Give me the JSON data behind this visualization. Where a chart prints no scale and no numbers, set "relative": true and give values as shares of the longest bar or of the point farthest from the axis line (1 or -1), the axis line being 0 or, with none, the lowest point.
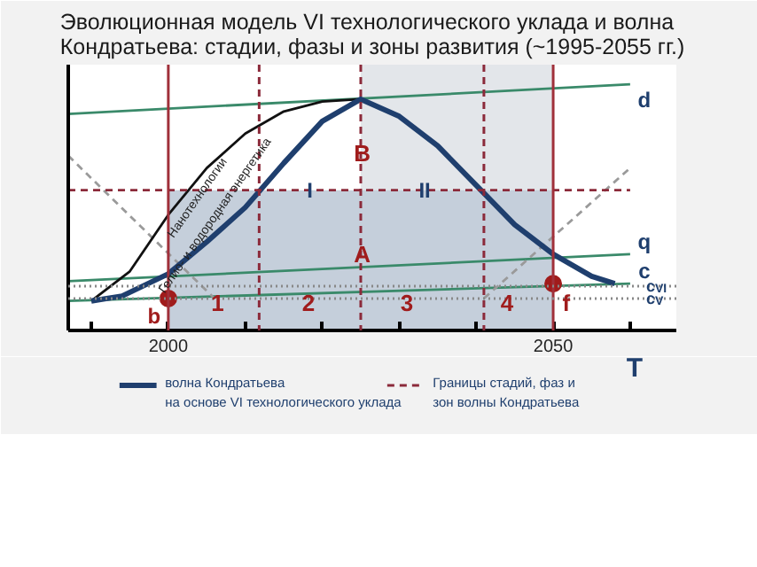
{
  "chart_data": {
    "type": "line",
    "relative": true,
    "title": "Эволюционная модель VI технологического уклада и волна\nКондратьева: стадии, фазы и зоны развития (~1995-2055 гг.)",
    "xlabel": "T",
    "xlim": [
      1987,
      2066
    ],
    "xticks": [
      {
        "value": 1990,
        "label": null
      },
      2000,
      {
        "value": 2010,
        "label": null
      },
      {
        "value": 2020,
        "label": null
      },
      {
        "value": 2030,
        "label": null
      },
      {
        "value": 2040,
        "label": null
      },
      2050,
      {
        "value": 2060,
        "label": null
      }
    ],
    "grid": false,
    "legend": "bottom",
    "tick_labels": "x",
    "series": [
      {
        "type": "area",
        "color": "#c5cfdb",
        "x": [
          2000,
          2050
        ],
        "values": [
          0.57,
          0.57
        ]
      },
      {
        "color": "#3a8a6a",
        "x": [
          1987,
          2060
        ],
        "values": [
          0.88,
          1.0
        ]
      },
      {
        "color": "#3a8a6a",
        "x": [
          1987,
          2060
        ],
        "values": [
          0.2,
          0.31
        ]
      },
      {
        "color": "#3a8a6a",
        "x": [
          1987,
          2060
        ],
        "values": [
          0.12,
          0.19
        ]
      },
      {
        "color": "#9a9a9a",
        "line_style": "dashed",
        "x": [
          1987,
          2006
        ],
        "values": [
          0.71,
          0.13
        ]
      },
      {
        "color": "#9a9a9a",
        "line_style": "dashed",
        "x": [
          2041,
          2060
        ],
        "values": [
          0.13,
          0.66
        ]
      },
      {
        "color": "#111111",
        "x": [
          1990,
          1995,
          2000,
          2005,
          2010,
          2015,
          2020,
          2025
        ],
        "values": [
          0.12,
          0.24,
          0.47,
          0.66,
          0.8,
          0.89,
          0.93,
          0.94
        ]
      },
      {
        "name": "волна Кондратьева\nна основе VI технологического уклада",
        "color": "#1f3f6e",
        "x": [
          1990,
          1994,
          2000,
          2005,
          2010,
          2015,
          2020,
          2025,
          2030,
          2035,
          2040,
          2045,
          2050,
          2055,
          2058
        ],
        "values": [
          0.12,
          0.14,
          0.23,
          0.36,
          0.5,
          0.68,
          0.85,
          0.94,
          0.87,
          0.75,
          0.59,
          0.43,
          0.31,
          0.22,
          0.19
        ]
      },
      {
        "name": "Границы стадий, фаз и\nзон волны Кондратьева",
        "color": "#8b2a3a",
        "line_style": "dashed",
        "x": [
          1987,
          2060
        ],
        "values": [
          0.57,
          0.57
        ]
      },
      {
        "type": "scatter",
        "marker": "circle",
        "color": "#a01c1c",
        "x": [
          2000,
          2050
        ],
        "values": [
          0.13,
          0.19
        ]
      }
    ],
    "bands": [
      {
        "axis": "x",
        "from": 2025,
        "to": 2050,
        "color": "#e3e6ea"
      }
    ],
    "ref_lines": [
      {
        "axis": "x",
        "value": 2000,
        "color": "#a0303a"
      },
      {
        "axis": "x",
        "value": 2050,
        "color": "#a0303a"
      },
      {
        "axis": "x",
        "value": 2011.8,
        "color": "#8b2a3a",
        "line_style": "dashed"
      },
      {
        "axis": "x",
        "value": 2025,
        "color": "#8b2a3a",
        "line_style": "dashed"
      },
      {
        "axis": "x",
        "value": 2041,
        "color": "#8b2a3a",
        "line_style": "dashed"
      },
      {
        "axis": "y",
        "value": 0.18,
        "label": "c$_{VI}$",
        "color": "#888888",
        "line_style": "dotted"
      },
      {
        "axis": "y",
        "value": 0.13,
        "label": "c$_{V}$",
        "color": "#888888",
        "line_style": "dotted"
      }
    ],
    "annotations": [
      "Нанотехнологии",
      "Гелио- и водородная энергетика",
      "b",
      "d",
      "q",
      "c",
      {
        "text": "1",
        "x": 2006.4,
        "y": 0.11
      },
      {
        "text": "2",
        "x": 2018.2,
        "y": 0.11
      },
      {
        "text": "3",
        "x": 2031,
        "y": 0.11
      },
      {
        "text": "4",
        "x": 2044,
        "y": 0.11
      },
      {
        "text": "f",
        "x": 2051.7,
        "y": 0.11
      },
      {
        "text": "A",
        "x": 2025.2,
        "y": 0.31
      },
      {
        "text": "B",
        "x": 2025.2,
        "y": 0.72
      },
      {
        "text": "I",
        "x": 2018.4,
        "y": 0.57
      },
      {
        "text": "II",
        "x": 2033.3,
        "y": 0.57
      }
    ]
  }
}
